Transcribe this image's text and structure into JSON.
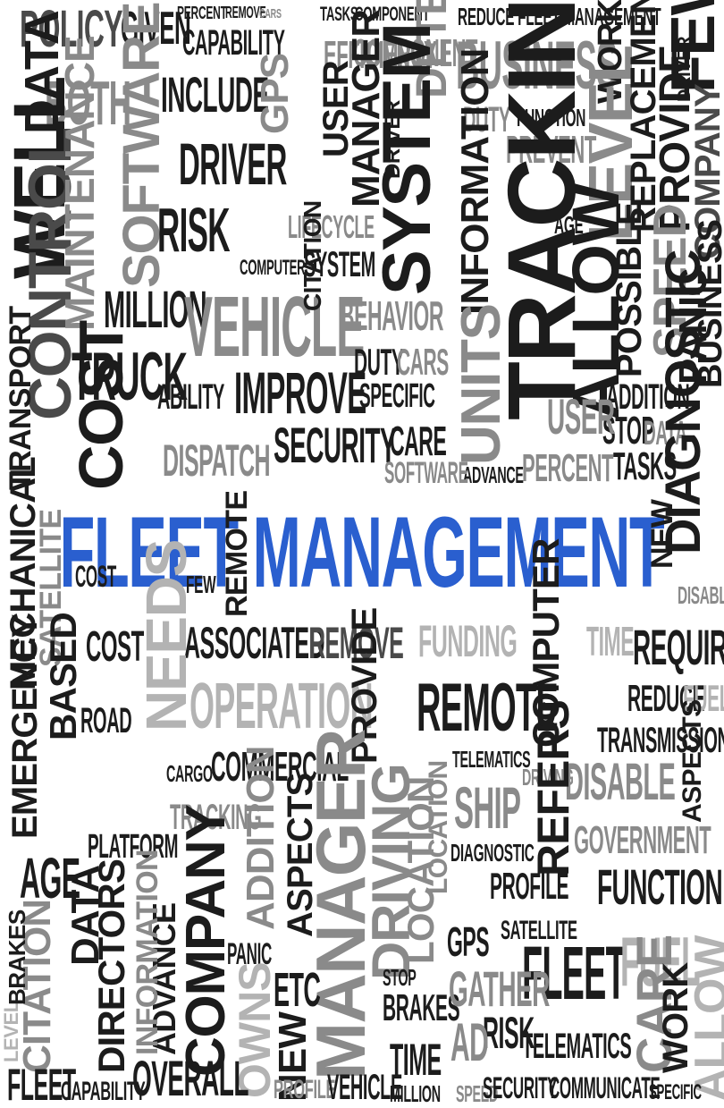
{
  "focus_phrase": "FLEET MANAGEMENT",
  "colors": {
    "focus": "#2a5fcf",
    "dark": "#1c1c1c",
    "mid": "#4a4a4a",
    "light": "#8a8a8a",
    "faint": "#b3b3b3"
  },
  "words": [
    "POLICY",
    "GIVEN",
    "PERCENT",
    "REMOVE",
    "CARS",
    "TASKS",
    "COMPONENT",
    "REDUCE FLEET MANAGEMENT",
    "BUSINESS",
    "CAPABILITY",
    "INCLUDE",
    "GPS",
    "EFFICIENCY",
    "DETERMINED",
    "FEW",
    "COMPONENT",
    "DRIVER",
    "BOTH",
    "DATA",
    "SOFTWARE",
    "DRIVER",
    "USER",
    "MANAGER",
    "SYSTEM",
    "DUTY",
    "FUNCTION",
    "WORK",
    "PREVENT",
    "LEVEL",
    "REPLACEMENT",
    "WELL",
    "CONTROL",
    "RISK",
    "LIFECYCLE",
    "TRACKING",
    "ALLOW",
    "PROVIDE",
    "COMPANY",
    "MAINTENANCE",
    "COMPUTER",
    "SYSTEM",
    "INFORMATION",
    "UNITS",
    "MILLION",
    "VEHICLE",
    "BEHAVIOR",
    "TRUCK",
    "IMPROVE",
    "DUTY",
    "CARS",
    "POSSIBLE",
    "SPEED",
    "PANIC",
    "BUSINESS",
    "ABILITY",
    "SPECIFIC",
    "ADDITION",
    "COST",
    "DISPATCH",
    "SECURITY",
    "CARE",
    "STOP",
    "DATA",
    "DIAGNOSTIC",
    "USER",
    "PERCENT",
    "TASKS",
    "ADVANCE",
    "SOFTWARE",
    "TRANSPORT",
    "MECHANICAL",
    "SATELLITE",
    "REMOTE",
    "NEW",
    "DISABLE",
    "ASSOCIATED",
    "REMOVE",
    "FUNDING",
    "TIME",
    "REQUIRES",
    "COST",
    "NEEDS",
    "OPERATION",
    "PROVIDE",
    "REMOTE",
    "COMPUTER",
    "REDUCE",
    "FUEL",
    "TRANSMISSION",
    "BASED",
    "ROAD",
    "COMMERCIAL",
    "TELEMATICS",
    "DRIVING",
    "DISABLE",
    "EMERGENCY",
    "CARGO",
    "MANAGER",
    "SHIP",
    "REFERS",
    "ASPECTS",
    "GOVERNMENT",
    "TRACKING",
    "PLATFORM",
    "AGE",
    "COMPANY",
    "DRIVING",
    "LOCATION",
    "DIAGNOSTIC",
    "PROFILE",
    "FUNCTION",
    "DATA",
    "ADDITION",
    "ASPECTS",
    "PANIC",
    "GPS",
    "SATELLITE",
    "FLEET",
    "FUEL",
    "DIRECTORS",
    "ADVANCE",
    "INFORMATION",
    "OWNS",
    "ETC",
    "STOP",
    "BRAKES",
    "GATHER",
    "TELEMATICS",
    "CARE",
    "WORK",
    "ALLOW",
    "CITATION",
    "OVERALL",
    "NEW",
    "PROFILE",
    "VEHICLE",
    "TIME",
    "MILLION",
    "SPEED",
    "SECURITY",
    "COMMUNICATE",
    "SPECIFIC",
    "FLEET",
    "CAPABILITY",
    "RISK",
    "AD",
    "LEVEL",
    "FEW",
    "DRIVER",
    "AGE",
    "LOCATION",
    "COST",
    "BRAKES",
    "CITATION",
    "SYSTEM"
  ]
}
